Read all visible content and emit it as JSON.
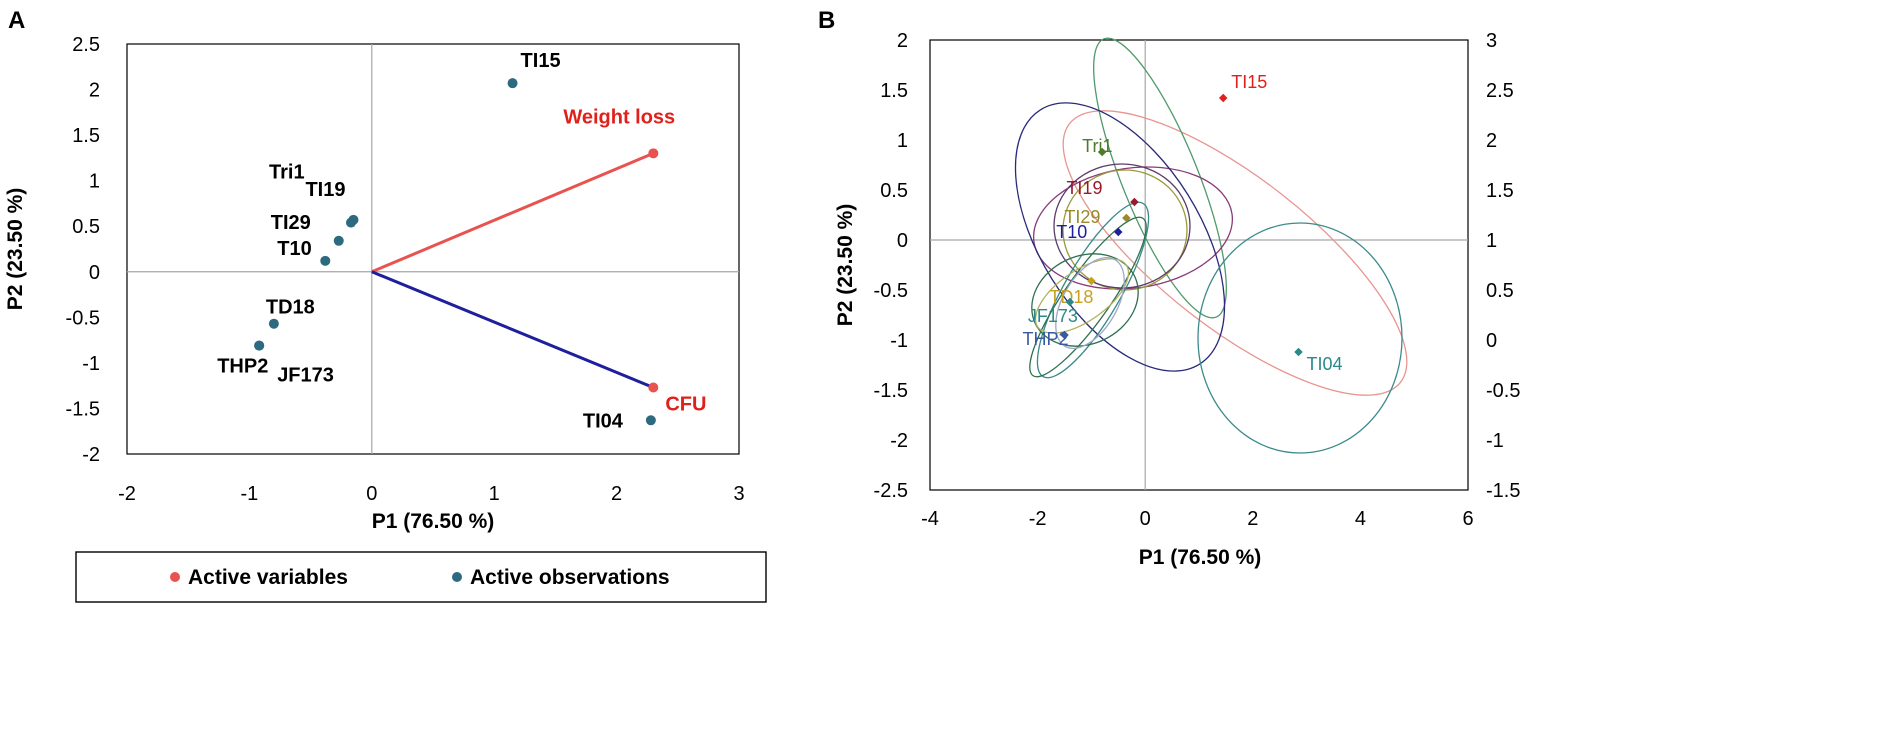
{
  "colors": {
    "variables": "#e8534f",
    "observations": "#2d6a7f",
    "weight_vector": "#e8534f",
    "cfu_vector": "#1f1f9e",
    "var_label": "#e0201b",
    "axis_line": "#a6a6a6",
    "ellipse_pink": "#e8958f",
    "ellipse_green": "#4f9a6a",
    "ellipse_navy": "#2a2a7a",
    "ellipse_purple": "#8a3a7a",
    "ellipse_olive": "#9a9a3a",
    "ellipse_teal": "#3a8a8a",
    "ellipse_darkgreen": "#2f6f4f",
    "ellipse_steel": "#9aaac8",
    "ellipse_gray": "#a8a8a8"
  },
  "chart_data": [
    {
      "panel": "A",
      "type": "scatter",
      "title": "",
      "xlabel": "P1 (76.50 %)",
      "ylabel": "P2 (23.50 %)",
      "xlim": [
        -2,
        3
      ],
      "ylim": [
        -2,
        2.5
      ],
      "xticks": [
        "-2",
        "-1",
        "0",
        "1",
        "2",
        "3"
      ],
      "yticks": [
        "2.5",
        "2",
        "1.5",
        "1",
        "0.5",
        "0",
        "-0.5",
        "-1",
        "-1.5",
        "-2"
      ],
      "variables": [
        {
          "name": "Weight loss",
          "x": 2.3,
          "y": 1.3
        },
        {
          "name": "CFU",
          "x": 2.3,
          "y": -1.27
        }
      ],
      "observations": [
        {
          "name": "TI15",
          "x": 1.15,
          "y": 2.07
        },
        {
          "name": "TI19",
          "x": -0.15,
          "y": 0.57
        },
        {
          "name": "Tri1",
          "x": -0.17,
          "y": 0.54
        },
        {
          "name": "TI29",
          "x": -0.27,
          "y": 0.34
        },
        {
          "name": "T10",
          "x": -0.38,
          "y": 0.12
        },
        {
          "name": "TD18",
          "x": -0.8,
          "y": -0.57
        },
        {
          "name": "THP2",
          "x": -0.92,
          "y": -0.81
        },
        {
          "name": "JF173",
          "x": -0.92,
          "y": -0.81
        },
        {
          "name": "TI04",
          "x": 2.28,
          "y": -1.63
        }
      ],
      "legend": [
        "Active variables",
        "Active observations"
      ]
    },
    {
      "panel": "B",
      "type": "scatter",
      "title": "",
      "xlabel": "P1 (76.50 %)",
      "ylabel": "P2 (23.50 %)",
      "xlim": [
        -4,
        6
      ],
      "ylim": [
        -2.5,
        2
      ],
      "y2lim": [
        -1.5,
        3
      ],
      "xticks": [
        "-4",
        "-2",
        "0",
        "2",
        "4",
        "6"
      ],
      "yticks": [
        "2",
        "1.5",
        "1",
        "0.5",
        "0",
        "-0.5",
        "-1",
        "-1.5",
        "-2",
        "-2.5"
      ],
      "y2ticks": [
        "3",
        "2.5",
        "2",
        "1.5",
        "1",
        "0.5",
        "0",
        "-0.5",
        "-1",
        "-1.5"
      ],
      "observations": [
        {
          "name": "TI15",
          "x": 1.45,
          "y": 1.42,
          "color": "#e0201b"
        },
        {
          "name": "Tri1",
          "x": -0.8,
          "y": 0.88,
          "color": "#4f7a2a"
        },
        {
          "name": "TI19",
          "x": -0.2,
          "y": 0.38,
          "color": "#9a1a2a"
        },
        {
          "name": "TI29",
          "x": -0.35,
          "y": 0.22,
          "color": "#9a8a2a"
        },
        {
          "name": "T10",
          "x": -0.5,
          "y": 0.08,
          "color": "#1f1f9e"
        },
        {
          "name": "TD18",
          "x": -1.0,
          "y": -0.41,
          "color": "#c8a020"
        },
        {
          "name": "JF173",
          "x": -1.4,
          "y": -0.62,
          "color": "#2a8a8a"
        },
        {
          "name": "THP2",
          "x": -1.5,
          "y": -0.95,
          "color": "#3a5aa0"
        },
        {
          "name": "TI04",
          "x": 2.85,
          "y": -1.12,
          "color": "#2a8a8a"
        }
      ]
    }
  ]
}
